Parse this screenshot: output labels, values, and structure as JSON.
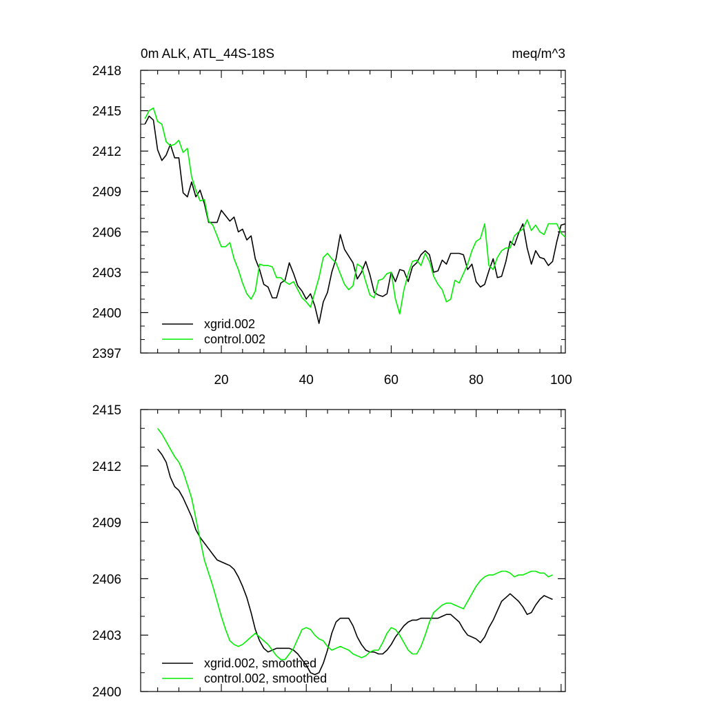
{
  "colors": {
    "series_xgrid": "#000000",
    "series_control": "#00ee00"
  },
  "chart_data": [
    {
      "type": "line",
      "title_left": "0m ALK, ATL_44S-18S",
      "title_right": "meq/m^3",
      "xlim": [
        1,
        101
      ],
      "ylim": [
        2397,
        2418
      ],
      "xticks": [
        20,
        40,
        60,
        80,
        100
      ],
      "xtick_labels": [
        "20",
        "40",
        "60",
        "80",
        "100"
      ],
      "yticks": [
        2397,
        2400,
        2403,
        2406,
        2409,
        2412,
        2415,
        2418
      ],
      "ytick_labels": [
        "2397",
        "2400",
        "2403",
        "2406",
        "2409",
        "2412",
        "2415",
        "2418"
      ],
      "series": [
        {
          "name": "xgrid.002",
          "x": [
            2,
            3,
            4,
            5,
            6,
            7,
            8,
            9,
            10,
            11,
            12,
            13,
            14,
            15,
            16,
            17,
            18,
            19,
            20,
            21,
            22,
            23,
            24,
            25,
            26,
            27,
            28,
            29,
            30,
            31,
            32,
            33,
            34,
            35,
            36,
            37,
            38,
            39,
            40,
            41,
            42,
            43,
            44,
            45,
            46,
            47,
            48,
            49,
            50,
            51,
            52,
            53,
            54,
            55,
            56,
            57,
            58,
            59,
            60,
            61,
            62,
            63,
            64,
            65,
            66,
            67,
            68,
            69,
            70,
            71,
            72,
            73,
            74,
            75,
            76,
            77,
            78,
            79,
            80,
            81,
            82,
            83,
            84,
            85,
            86,
            87,
            88,
            89,
            90,
            91,
            92,
            93,
            94,
            95,
            96,
            97,
            98,
            99,
            100,
            101
          ],
          "values": [
            2414.0,
            2414.6,
            2414.3,
            2412.1,
            2411.3,
            2411.7,
            2412.5,
            2411.5,
            2411.5,
            2408.9,
            2408.6,
            2409.7,
            2408.6,
            2409.1,
            2408.1,
            2406.7,
            2406.7,
            2406.7,
            2407.6,
            2407.2,
            2406.8,
            2407.1,
            2406.0,
            2406.2,
            2405.4,
            2405.7,
            2404.0,
            2403.2,
            2402.1,
            2401.9,
            2401.1,
            2401.1,
            2402.2,
            2402.4,
            2403.7,
            2402.9,
            2402.0,
            2401.6,
            2401.0,
            2401.4,
            2400.5,
            2399.2,
            2400.8,
            2401.5,
            2403.0,
            2404.0,
            2405.8,
            2404.7,
            2404.2,
            2403.7,
            2402.5,
            2403.0,
            2403.8,
            2402.8,
            2401.5,
            2401.3,
            2401.2,
            2401.4,
            2403.0,
            2402.3,
            2403.2,
            2403.1,
            2402.3,
            2403.4,
            2403.7,
            2404.3,
            2404.6,
            2404.3,
            2403.0,
            2403.1,
            2403.9,
            2403.6,
            2404.4,
            2404.4,
            2404.4,
            2404.3,
            2403.2,
            2403.6,
            2402.3,
            2401.9,
            2402.1,
            2403.1,
            2404.0,
            2402.6,
            2402.7,
            2403.8,
            2405.3,
            2405.0,
            2405.9,
            2406.6,
            2404.8,
            2403.6,
            2404.6,
            2404.1,
            2404.0,
            2403.5,
            2403.8,
            2405.3,
            2406.5,
            2406.6
          ]
        },
        {
          "name": "control.002",
          "x": [
            2,
            3,
            4,
            5,
            6,
            7,
            8,
            9,
            10,
            11,
            12,
            13,
            14,
            15,
            16,
            17,
            18,
            19,
            20,
            21,
            22,
            23,
            24,
            25,
            26,
            27,
            28,
            29,
            30,
            31,
            32,
            33,
            34,
            35,
            36,
            37,
            38,
            39,
            40,
            41,
            42,
            43,
            44,
            45,
            46,
            47,
            48,
            49,
            50,
            51,
            52,
            53,
            54,
            55,
            56,
            57,
            58,
            59,
            60,
            61,
            62,
            63,
            64,
            65,
            66,
            67,
            68,
            69,
            70,
            71,
            72,
            73,
            74,
            75,
            76,
            77,
            78,
            79,
            80,
            81,
            82,
            83,
            84,
            85,
            86,
            87,
            88,
            89,
            90,
            91,
            92,
            93,
            94,
            95,
            96,
            97,
            98,
            99,
            100,
            101
          ],
          "values": [
            2414.4,
            2415.0,
            2415.2,
            2414.2,
            2414.0,
            2412.7,
            2412.4,
            2412.5,
            2412.8,
            2411.9,
            2412.2,
            2410.1,
            2409.1,
            2408.3,
            2408.4,
            2406.8,
            2406.5,
            2405.7,
            2404.9,
            2404.9,
            2405.2,
            2404.0,
            2403.2,
            2402.2,
            2401.4,
            2401.0,
            2401.6,
            2403.6,
            2403.5,
            2403.5,
            2403.4,
            2402.6,
            2402.6,
            2402.3,
            2402.1,
            2402.3,
            2401.7,
            2401.1,
            2400.8,
            2400.4,
            2401.5,
            2402.6,
            2404.1,
            2404.4,
            2404.0,
            2403.7,
            2402.9,
            2402.1,
            2401.7,
            2402.0,
            2403.6,
            2403.4,
            2402.3,
            2401.3,
            2401.1,
            2402.4,
            2402.5,
            2402.9,
            2403.0,
            2401.0,
            2399.9,
            2401.7,
            2402.9,
            2403.8,
            2403.9,
            2403.5,
            2404.4,
            2403.8,
            2402.7,
            2402.1,
            2401.7,
            2400.8,
            2401.0,
            2402.4,
            2402.2,
            2402.9,
            2403.6,
            2404.6,
            2405.3,
            2405.5,
            2406.6,
            2403.5,
            2403.2,
            2404.1,
            2404.6,
            2404.8,
            2404.8,
            2405.7,
            2406.0,
            2406.2,
            2406.9,
            2406.1,
            2406.5,
            2406.0,
            2405.8,
            2406.6,
            2406.6,
            2406.6,
            2405.9,
            2405.6
          ]
        }
      ],
      "legend": {
        "placement": "bottom-left",
        "items": [
          "xgrid.002",
          "control.002"
        ]
      }
    },
    {
      "type": "line",
      "xlim": [
        1,
        101
      ],
      "ylim": [
        2400,
        2415
      ],
      "xticks": [
        20,
        40,
        60,
        80,
        100
      ],
      "yticks": [
        2400,
        2403,
        2406,
        2409,
        2412,
        2415
      ],
      "ytick_labels": [
        "2400",
        "2403",
        "2406",
        "2409",
        "2412",
        "2415"
      ],
      "series": [
        {
          "name": "xgrid.002, smoothed",
          "x": [
            5,
            6,
            7,
            8,
            9,
            10,
            11,
            12,
            13,
            14,
            15,
            16,
            17,
            18,
            19,
            20,
            21,
            22,
            23,
            24,
            25,
            26,
            27,
            28,
            29,
            30,
            31,
            32,
            33,
            34,
            35,
            36,
            37,
            38,
            39,
            40,
            41,
            42,
            43,
            44,
            45,
            46,
            47,
            48,
            49,
            50,
            51,
            52,
            53,
            54,
            55,
            56,
            57,
            58,
            59,
            60,
            61,
            62,
            63,
            64,
            65,
            66,
            67,
            68,
            69,
            70,
            71,
            72,
            73,
            74,
            75,
            76,
            77,
            78,
            79,
            80,
            81,
            82,
            83,
            84,
            85,
            86,
            87,
            88,
            89,
            90,
            91,
            92,
            93,
            94,
            95,
            96,
            97,
            98
          ],
          "values": [
            2412.9,
            2412.6,
            2412.2,
            2411.4,
            2410.9,
            2410.7,
            2410.3,
            2409.8,
            2409.3,
            2408.6,
            2408.2,
            2407.9,
            2407.6,
            2407.3,
            2407.0,
            2406.9,
            2406.8,
            2406.7,
            2406.5,
            2406.1,
            2405.6,
            2405.0,
            2404.2,
            2403.3,
            2402.7,
            2402.3,
            2402.1,
            2402.2,
            2402.3,
            2402.3,
            2402.3,
            2402.3,
            2402.2,
            2402.0,
            2401.7,
            2401.4,
            2401.0,
            2400.9,
            2401.0,
            2401.5,
            2402.2,
            2403.1,
            2403.7,
            2403.9,
            2403.9,
            2403.9,
            2403.5,
            2402.9,
            2402.5,
            2402.2,
            2402.1,
            2402.1,
            2402.0,
            2402.0,
            2402.2,
            2402.5,
            2402.9,
            2403.2,
            2403.5,
            2403.7,
            2403.8,
            2403.8,
            2403.9,
            2403.9,
            2403.9,
            2403.9,
            2403.9,
            2404.0,
            2404.1,
            2404.1,
            2403.9,
            2403.7,
            2403.3,
            2403.0,
            2402.9,
            2402.8,
            2402.6,
            2402.9,
            2403.4,
            2403.8,
            2404.3,
            2404.8,
            2405.0,
            2405.2,
            2405.0,
            2404.8,
            2404.5,
            2404.1,
            2404.2,
            2404.6,
            2404.9,
            2405.1,
            2405.0,
            2404.9
          ]
        },
        {
          "name": "control.002, smoothed",
          "x": [
            5,
            6,
            7,
            8,
            9,
            10,
            11,
            12,
            13,
            14,
            15,
            16,
            17,
            18,
            19,
            20,
            21,
            22,
            23,
            24,
            25,
            26,
            27,
            28,
            29,
            30,
            31,
            32,
            33,
            34,
            35,
            36,
            37,
            38,
            39,
            40,
            41,
            42,
            43,
            44,
            45,
            46,
            47,
            48,
            49,
            50,
            51,
            52,
            53,
            54,
            55,
            56,
            57,
            58,
            59,
            60,
            61,
            62,
            63,
            64,
            65,
            66,
            67,
            68,
            69,
            70,
            71,
            72,
            73,
            74,
            75,
            76,
            77,
            78,
            79,
            80,
            81,
            82,
            83,
            84,
            85,
            86,
            87,
            88,
            89,
            90,
            91,
            92,
            93,
            94,
            95,
            96,
            97,
            98
          ],
          "values": [
            2414.0,
            2413.7,
            2413.3,
            2412.9,
            2412.5,
            2412.2,
            2411.7,
            2411.0,
            2410.3,
            2409.2,
            2408.1,
            2407.0,
            2406.3,
            2405.6,
            2404.8,
            2404.0,
            2403.3,
            2402.7,
            2402.5,
            2402.4,
            2402.5,
            2402.7,
            2402.9,
            2403.1,
            2402.9,
            2402.7,
            2402.5,
            2402.2,
            2401.9,
            2401.7,
            2401.7,
            2402.0,
            2402.3,
            2402.8,
            2403.3,
            2403.4,
            2403.3,
            2403.0,
            2402.8,
            2402.7,
            2402.4,
            2402.2,
            2402.3,
            2402.4,
            2402.3,
            2402.2,
            2402.0,
            2401.9,
            2401.8,
            2401.9,
            2402.1,
            2402.2,
            2402.2,
            2402.6,
            2403.1,
            2403.4,
            2403.3,
            2403.0,
            2402.6,
            2402.2,
            2402.0,
            2402.0,
            2402.4,
            2403.0,
            2403.7,
            2404.2,
            2404.4,
            2404.6,
            2404.7,
            2404.7,
            2404.6,
            2404.5,
            2404.4,
            2404.8,
            2405.2,
            2405.6,
            2405.9,
            2406.1,
            2406.2,
            2406.2,
            2406.3,
            2406.4,
            2406.4,
            2406.3,
            2406.1,
            2406.2,
            2406.2,
            2406.3,
            2406.4,
            2406.4,
            2406.3,
            2406.3,
            2406.1,
            2406.2
          ]
        }
      ],
      "legend": {
        "placement": "bottom-left",
        "items": [
          "xgrid.002, smoothed",
          "control.002, smoothed"
        ]
      }
    }
  ]
}
